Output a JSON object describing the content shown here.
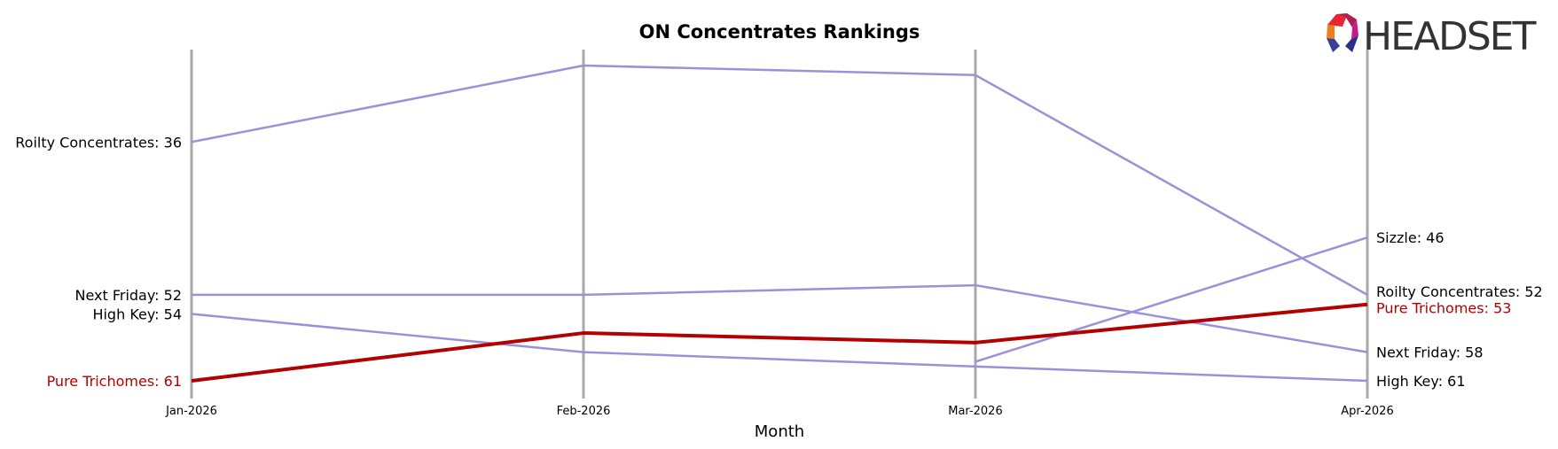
{
  "logo": {
    "text": "HEADSET",
    "icon": "headset-logo-icon"
  },
  "chart_data": {
    "type": "line",
    "title": "ON Concentrates Rankings",
    "xlabel": "Month",
    "ylabel": "",
    "categories": [
      "Jan-2026",
      "Feb-2026",
      "Mar-2026",
      "Apr-2026"
    ],
    "y_axis_inverted": true,
    "ylim": [
      27,
      61
    ],
    "grid": "vertical lines at each month",
    "legend": "none; series labelled at line ends",
    "colors": {
      "highlight": "#b30000",
      "other": "#9b91d9",
      "gridline": "#aaaaaa"
    },
    "series": [
      {
        "name": "Roilty Concentrates",
        "values": [
          36,
          28,
          29,
          52
        ],
        "highlight": false,
        "start_label": "Roilty Concentrates: 36",
        "end_label": "Roilty Concentrates: 52"
      },
      {
        "name": "Next Friday",
        "values": [
          52,
          52,
          51,
          58
        ],
        "highlight": false,
        "start_label": "Next Friday: 52",
        "end_label": "Next Friday: 58"
      },
      {
        "name": "High Key",
        "values": [
          54,
          58,
          59.5,
          61
        ],
        "highlight": false,
        "start_label": "High Key: 54",
        "end_label": "High Key: 61"
      },
      {
        "name": "Sizzle",
        "values": [
          null,
          null,
          59,
          46
        ],
        "highlight": false,
        "start_label": "",
        "end_label": "Sizzle: 46"
      },
      {
        "name": "Pure Trichomes",
        "values": [
          61,
          56,
          57,
          53
        ],
        "highlight": true,
        "start_label": "Pure Trichomes: 61",
        "end_label": "Pure Trichomes: 53"
      }
    ]
  }
}
